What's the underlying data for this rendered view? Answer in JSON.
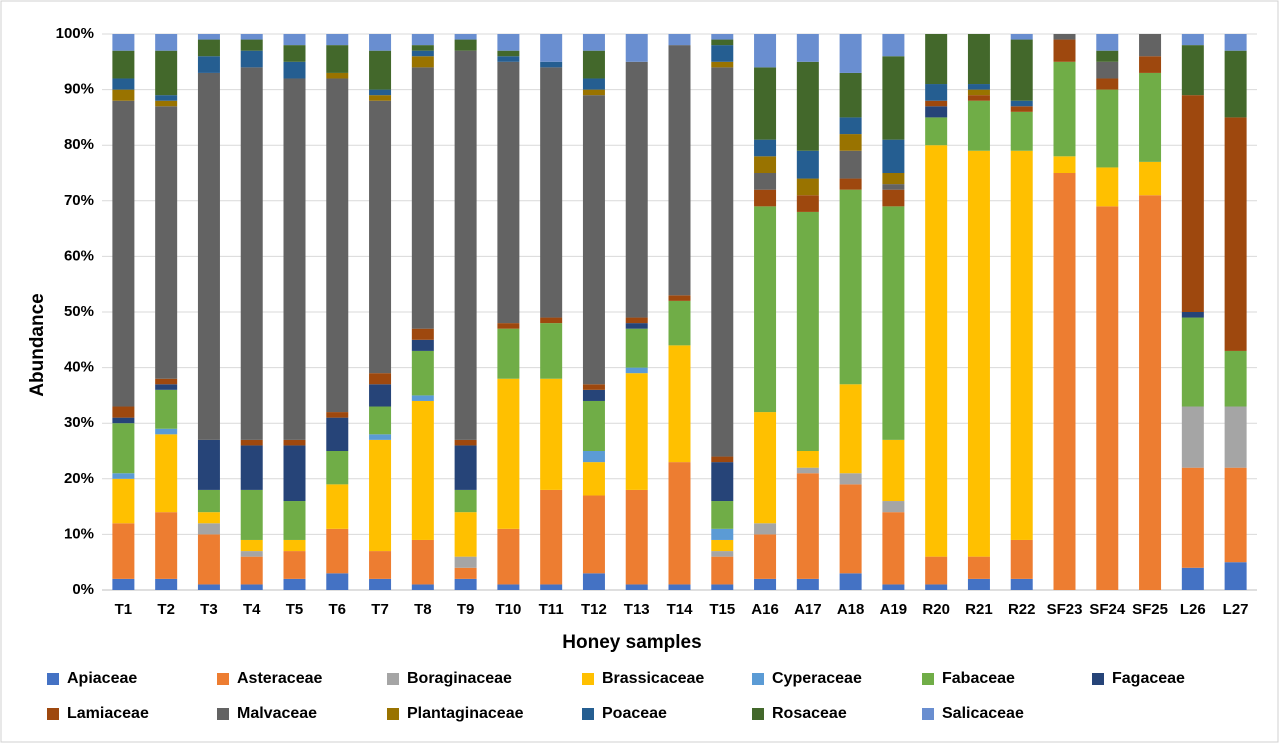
{
  "chart_data": {
    "type": "stacked_bar",
    "x_label": "Honey samples",
    "y_label": "Abundance",
    "categories": [
      "T1",
      "T2",
      "T3",
      "T4",
      "T5",
      "T6",
      "T7",
      "T8",
      "T9",
      "T10",
      "T11",
      "T12",
      "T13",
      "T14",
      "T15",
      "A16",
      "A17",
      "A18",
      "A19",
      "R20",
      "R21",
      "R22",
      "SF23",
      "SF24",
      "SF25",
      "L26",
      "L27"
    ],
    "ylim": [
      0,
      100
    ],
    "yticks": [
      {
        "value": 0,
        "label": "0%"
      },
      {
        "value": 10,
        "label": "10%"
      },
      {
        "value": 20,
        "label": "20%"
      },
      {
        "value": 30,
        "label": "30%"
      },
      {
        "value": 40,
        "label": "40%"
      },
      {
        "value": 50,
        "label": "50%"
      },
      {
        "value": 60,
        "label": "60%"
      },
      {
        "value": 70,
        "label": "70%"
      },
      {
        "value": 80,
        "label": "80%"
      },
      {
        "value": 90,
        "label": "90%"
      },
      {
        "value": 100,
        "label": "100%"
      }
    ],
    "grid": true,
    "series": [
      {
        "name": "Apiaceae",
        "color": "#4472c4",
        "values": [
          2,
          2,
          1,
          1,
          2,
          3,
          2,
          1,
          2,
          1,
          1,
          3,
          1,
          1,
          1,
          2,
          2,
          3,
          1,
          1,
          2,
          2,
          0,
          0,
          0,
          4,
          5
        ]
      },
      {
        "name": "Asteraceae",
        "color": "#ed7d31",
        "values": [
          10,
          12,
          9,
          5,
          5,
          8,
          5,
          8,
          2,
          10,
          17,
          14,
          17,
          22,
          5,
          8,
          19,
          16,
          13,
          5,
          4,
          7,
          75,
          69,
          71,
          18,
          17
        ]
      },
      {
        "name": "Boraginaceae",
        "color": "#a5a5a5",
        "values": [
          0,
          0,
          2,
          1,
          0,
          0,
          0,
          0,
          2,
          0,
          0,
          0,
          0,
          0,
          1,
          2,
          1,
          2,
          2,
          0,
          0,
          0,
          0,
          0,
          0,
          11,
          11
        ]
      },
      {
        "name": "Brassicaceae",
        "color": "#ffc000",
        "values": [
          8,
          14,
          2,
          2,
          2,
          8,
          20,
          25,
          8,
          27,
          20,
          6,
          21,
          21,
          2,
          20,
          3,
          16,
          11,
          74,
          73,
          70,
          3,
          7,
          6,
          0,
          0
        ]
      },
      {
        "name": "Cyperaceae",
        "color": "#5b9bd5",
        "values": [
          1,
          1,
          0,
          0,
          0,
          0,
          1,
          1,
          0,
          0,
          0,
          2,
          1,
          0,
          2,
          0,
          0,
          0,
          0,
          0,
          0,
          0,
          0,
          0,
          0,
          0,
          0
        ]
      },
      {
        "name": "Fabaceae",
        "color": "#70ad47",
        "values": [
          9,
          7,
          4,
          9,
          7,
          6,
          5,
          8,
          4,
          9,
          10,
          9,
          7,
          8,
          5,
          37,
          43,
          35,
          42,
          5,
          9,
          7,
          17,
          14,
          16,
          16,
          10
        ]
      },
      {
        "name": "Fagaceae",
        "color": "#264478",
        "values": [
          1,
          1,
          9,
          8,
          10,
          6,
          4,
          2,
          8,
          0,
          0,
          2,
          1,
          0,
          7,
          0,
          0,
          0,
          0,
          2,
          0,
          0,
          0,
          0,
          0,
          1,
          0
        ]
      },
      {
        "name": "Lamiaceae",
        "color": "#9e480e",
        "values": [
          2,
          1,
          0,
          1,
          1,
          1,
          2,
          2,
          1,
          1,
          1,
          1,
          1,
          1,
          1,
          3,
          3,
          2,
          3,
          1,
          1,
          1,
          4,
          2,
          3,
          39,
          42
        ]
      },
      {
        "name": "Malvaceae",
        "color": "#636363",
        "values": [
          55,
          49,
          66,
          67,
          65,
          60,
          49,
          47,
          70,
          47,
          45,
          52,
          46,
          45,
          70,
          3,
          0,
          5,
          1,
          0,
          0,
          0,
          1,
          3,
          4,
          0,
          0
        ]
      },
      {
        "name": "Plantaginaceae",
        "color": "#997300",
        "values": [
          2,
          1,
          0,
          0,
          0,
          1,
          1,
          2,
          0,
          0,
          0,
          1,
          0,
          0,
          1,
          3,
          3,
          3,
          2,
          0,
          1,
          0,
          0,
          0,
          0,
          0,
          0
        ]
      },
      {
        "name": "Poaceae",
        "color": "#255e91",
        "values": [
          2,
          1,
          3,
          3,
          3,
          0,
          1,
          1,
          0,
          1,
          1,
          2,
          0,
          0,
          3,
          3,
          5,
          3,
          6,
          3,
          1,
          1,
          0,
          0,
          0,
          0,
          0
        ]
      },
      {
        "name": "Rosaceae",
        "color": "#43682b",
        "values": [
          5,
          8,
          3,
          2,
          3,
          5,
          7,
          1,
          2,
          1,
          0,
          5,
          0,
          0,
          1,
          13,
          16,
          8,
          15,
          9,
          9,
          11,
          0,
          2,
          0,
          9,
          12
        ]
      },
      {
        "name": "Salicaceae",
        "color": "#698ed0",
        "values": [
          3,
          3,
          1,
          1,
          2,
          2,
          3,
          2,
          1,
          3,
          5,
          3,
          5,
          2,
          1,
          6,
          5,
          7,
          4,
          0,
          0,
          1,
          0,
          3,
          0,
          2,
          3
        ]
      }
    ]
  }
}
